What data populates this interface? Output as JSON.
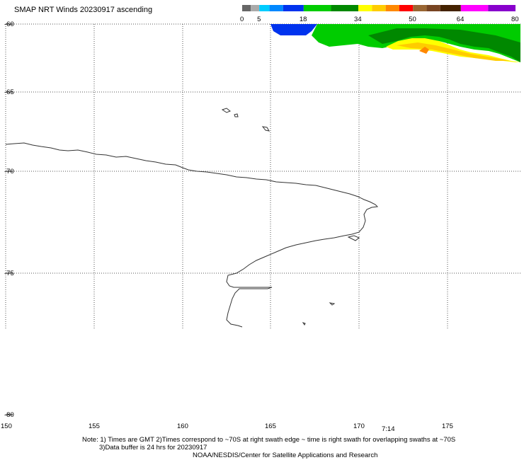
{
  "title": "SMAP NRT Winds 20230917 ascending",
  "legend": {
    "tick_labels": [
      "0",
      "5",
      "18",
      "34",
      "50",
      "64",
      "80"
    ],
    "segments": [
      {
        "from": 0,
        "to": 2.5,
        "color": "#666666"
      },
      {
        "from": 2.5,
        "to": 5,
        "color": "#aaaaaa"
      },
      {
        "from": 5,
        "to": 8,
        "color": "#00ccff"
      },
      {
        "from": 8,
        "to": 12,
        "color": "#0088ff"
      },
      {
        "from": 12,
        "to": 18,
        "color": "#0033ee"
      },
      {
        "from": 18,
        "to": 26,
        "color": "#00cc00"
      },
      {
        "from": 26,
        "to": 34,
        "color": "#008800"
      },
      {
        "from": 34,
        "to": 38,
        "color": "#ffff00"
      },
      {
        "from": 38,
        "to": 42,
        "color": "#ffcc00"
      },
      {
        "from": 42,
        "to": 46,
        "color": "#ff8800"
      },
      {
        "from": 46,
        "to": 50,
        "color": "#ff0000"
      },
      {
        "from": 50,
        "to": 54,
        "color": "#996633"
      },
      {
        "from": 54,
        "to": 58,
        "color": "#774422"
      },
      {
        "from": 58,
        "to": 64,
        "color": "#442200"
      },
      {
        "from": 64,
        "to": 72,
        "color": "#ff00ff"
      },
      {
        "from": 72,
        "to": 80,
        "color": "#8800cc"
      }
    ]
  },
  "map": {
    "lat_labels": [
      "-60",
      "-65",
      "-70",
      "-75",
      "-80"
    ],
    "lon_labels": [
      "150",
      "155",
      "160",
      "165",
      "170",
      "175"
    ],
    "swath_time": "7:14",
    "swath_colors": {
      "calm": "#0033ee",
      "moderate": "#00cc00",
      "fresh": "#008800",
      "gale": "#ffff00",
      "strong": "#ffcc00",
      "storm": "#ff8800"
    }
  },
  "notes": {
    "line1": "Note: 1) Times are GMT 2)Times correspond to ~70S at right swath edge ~ time is right swath for overlapping swaths at ~70S",
    "line2": "3)Data buffer is 24 hrs for 20230917",
    "line3": "NOAA/NESDIS/Center for Satellite Applications and Research"
  }
}
